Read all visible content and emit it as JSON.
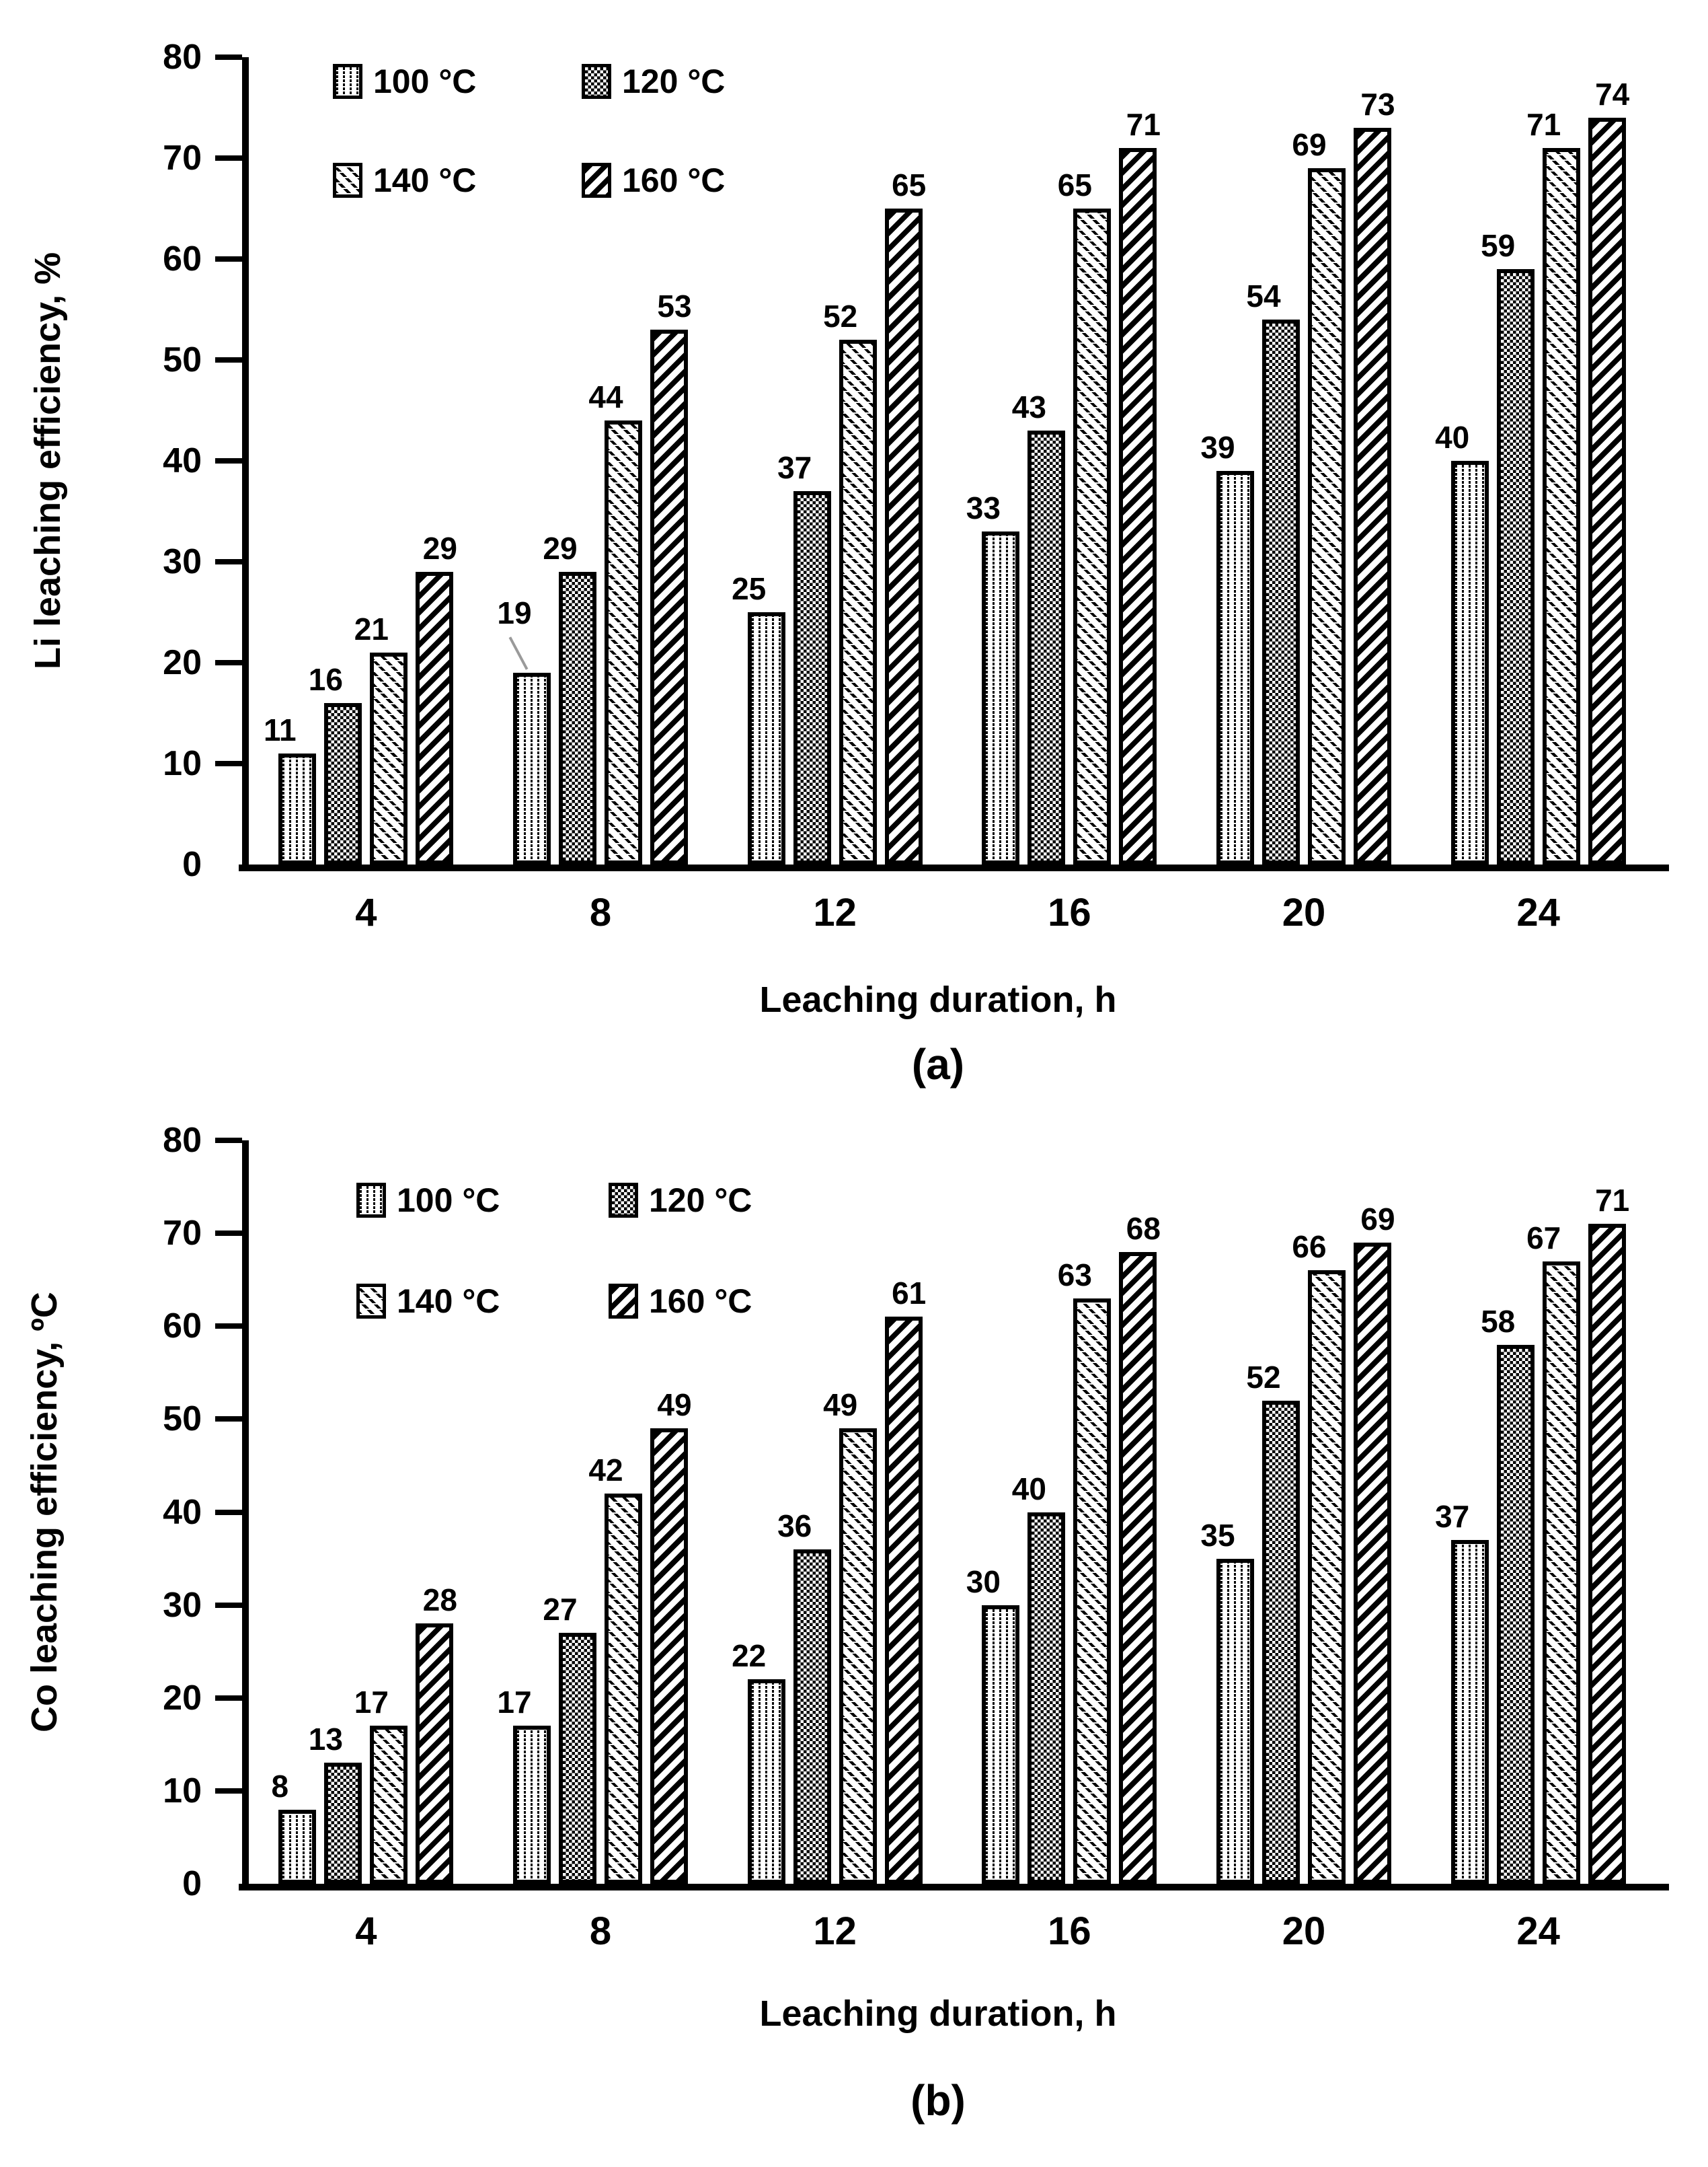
{
  "chart_data": [
    {
      "id": "a",
      "type": "bar",
      "title": "",
      "ylabel": "Li leaching efficiency, %",
      "xlabel": "Leaching duration, h",
      "caption": "(a)",
      "categories": [
        "4",
        "8",
        "12",
        "16",
        "20",
        "24"
      ],
      "series": [
        {
          "name": "100 °C",
          "pattern": "dotted-columns",
          "values": [
            11,
            19,
            25,
            33,
            39,
            40
          ]
        },
        {
          "name": "120 °C",
          "pattern": "dot-grid-checker",
          "values": [
            16,
            29,
            37,
            43,
            54,
            59
          ]
        },
        {
          "name": "140 °C",
          "pattern": "thin-backslash-hatch",
          "values": [
            21,
            44,
            52,
            65,
            69,
            71
          ]
        },
        {
          "name": "160 °C",
          "pattern": "bold-forward-hatch",
          "values": [
            29,
            53,
            65,
            71,
            73,
            74
          ]
        }
      ],
      "ylim": [
        0,
        80
      ],
      "ytick_step": 10,
      "yticks": [
        "0",
        "10",
        "20",
        "30",
        "40",
        "50",
        "60",
        "70",
        "80"
      ],
      "grid": "off",
      "legend_position": "inside-top-left, 2 columns",
      "data_labels": true,
      "callout": {
        "series_index": 0,
        "category_index": 1,
        "note": "gray leader line from label 19 to bar top"
      }
    },
    {
      "id": "b",
      "type": "bar",
      "title": "",
      "ylabel": "Co leaching efficiency, ºC",
      "xlabel": "Leaching duration, h",
      "caption": "(b)",
      "categories": [
        "4",
        "8",
        "12",
        "16",
        "20",
        "24"
      ],
      "series": [
        {
          "name": "100 °C",
          "pattern": "dotted-columns",
          "values": [
            8,
            17,
            22,
            30,
            35,
            37
          ]
        },
        {
          "name": "120 °C",
          "pattern": "dot-grid-checker",
          "values": [
            13,
            27,
            36,
            40,
            52,
            58
          ]
        },
        {
          "name": "140 °C",
          "pattern": "thin-backslash-hatch",
          "values": [
            17,
            42,
            49,
            63,
            66,
            67
          ]
        },
        {
          "name": "160 °C",
          "pattern": "bold-forward-hatch",
          "values": [
            28,
            49,
            61,
            68,
            69,
            71
          ]
        }
      ],
      "ylim": [
        0,
        80
      ],
      "ytick_step": 10,
      "yticks": [
        "0",
        "10",
        "20",
        "30",
        "40",
        "50",
        "60",
        "70",
        "80"
      ],
      "grid": "off",
      "legend_position": "inside-top-left, 2 columns",
      "data_labels": true,
      "callout": null
    }
  ],
  "colors": {
    "foreground": "#000000",
    "background": "#ffffff",
    "leader_line": "#9a9a9a"
  }
}
